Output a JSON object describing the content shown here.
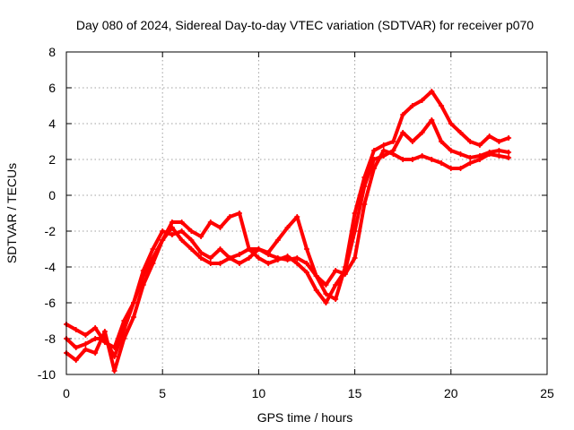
{
  "chart_data": {
    "type": "scatter",
    "title": "Day 080 of 2024, Sidereal Day-to-day VTEC variation (SDTVAR) for receiver p070",
    "xlabel": "GPS time / hours",
    "ylabel": "SDTVAR / TECUs",
    "xlim": [
      0,
      25
    ],
    "ylim": [
      -10,
      8
    ],
    "x_ticks": [
      0,
      5,
      10,
      15,
      20,
      25
    ],
    "y_ticks": [
      -10,
      -8,
      -6,
      -4,
      -2,
      0,
      2,
      4,
      6,
      8
    ],
    "grid": true,
    "legend": "none",
    "color": "#ff0000",
    "series": [
      {
        "x": [
          0,
          0.5,
          1.0,
          1.5,
          2.0,
          2.5,
          3.0,
          3.5,
          4.0,
          4.5,
          5.0,
          5.5,
          6.0,
          6.5,
          7.0,
          7.5,
          8.0,
          8.5,
          9.0,
          9.5,
          10.0,
          10.5,
          11.0,
          11.5,
          12.0,
          12.5,
          13.0,
          13.5,
          14.0,
          14.5,
          15.0,
          15.5,
          16.0,
          16.5,
          17.0,
          17.5,
          18.0,
          18.5,
          19.0,
          19.5,
          20.0,
          20.5,
          21.0,
          21.5,
          22.0,
          22.5,
          23.0
        ],
        "y": [
          -7.2,
          -7.5,
          -7.8,
          -7.4,
          -8.2,
          -8.5,
          -7.0,
          -6.0,
          -4.5,
          -3.5,
          -2.5,
          -1.5,
          -1.5,
          -2.0,
          -2.3,
          -1.5,
          -1.8,
          -1.2,
          -1.0,
          -3.0,
          -3.0,
          -3.2,
          -2.5,
          -1.8,
          -1.2,
          -3.0,
          -4.5,
          -5.5,
          -5.8,
          -4.0,
          -1.0,
          1.0,
          2.5,
          2.8,
          3.0,
          4.5,
          5.0,
          5.3,
          5.8,
          5.0,
          4.0,
          3.5,
          3.0,
          2.8,
          3.3,
          3.0,
          3.2
        ]
      },
      {
        "x": [
          0,
          0.5,
          1.0,
          1.5,
          2.0,
          2.5,
          3.0,
          3.5,
          4.0,
          4.5,
          5.0,
          5.5,
          6.0,
          6.5,
          7.0,
          7.5,
          8.0,
          8.5,
          9.0,
          9.5,
          10.0,
          10.5,
          11.0,
          11.5,
          12.0,
          12.5,
          13.0,
          13.5,
          14.0,
          14.5,
          15.0,
          15.5,
          16.0,
          16.5,
          17.0,
          17.5,
          18.0,
          18.5,
          19.0,
          19.5,
          20.0,
          20.5,
          21.0,
          21.5,
          22.0,
          22.5,
          23.0
        ],
        "y": [
          -8.8,
          -9.2,
          -8.6,
          -8.8,
          -7.6,
          -9.8,
          -8.0,
          -6.8,
          -5.0,
          -3.8,
          -2.5,
          -1.8,
          -2.5,
          -3.0,
          -3.5,
          -3.8,
          -3.8,
          -3.5,
          -3.8,
          -3.5,
          -3.0,
          -3.3,
          -3.5,
          -3.6,
          -3.5,
          -3.8,
          -4.5,
          -5.0,
          -4.2,
          -4.4,
          -3.5,
          -0.5,
          1.5,
          2.5,
          2.3,
          2.0,
          2.0,
          2.2,
          2.0,
          1.8,
          1.5,
          1.5,
          1.8,
          2.0,
          2.3,
          2.2,
          2.1
        ]
      },
      {
        "x": [
          0,
          0.5,
          1.0,
          1.5,
          2.0,
          2.5,
          3.0,
          3.5,
          4.0,
          4.5,
          5.0,
          5.5,
          6.0,
          6.5,
          7.0,
          7.5,
          8.0,
          8.5,
          9.0,
          9.5,
          10.0,
          10.5,
          11.0,
          11.5,
          12.0,
          12.5,
          13.0,
          13.5,
          14.0,
          14.5,
          15.0,
          15.5,
          16.0,
          16.5,
          17.0,
          17.5,
          18.0,
          18.5,
          19.0,
          19.5,
          20.0,
          20.5,
          21.0,
          21.5,
          22.0,
          22.5,
          23.0
        ],
        "y": [
          -8.0,
          -8.5,
          -8.3,
          -8.0,
          -8.0,
          -9.0,
          -7.5,
          -6.0,
          -4.2,
          -3.0,
          -2.0,
          -2.2,
          -2.0,
          -2.5,
          -3.2,
          -3.5,
          -3.0,
          -3.5,
          -3.3,
          -3.0,
          -3.5,
          -3.8,
          -3.6,
          -3.4,
          -3.8,
          -4.3,
          -5.3,
          -6.0,
          -5.0,
          -4.2,
          -2.0,
          0.5,
          2.0,
          2.2,
          2.5,
          3.5,
          3.0,
          3.5,
          4.2,
          3.0,
          2.5,
          2.3,
          2.1,
          2.2,
          2.4,
          2.5,
          2.4
        ]
      }
    ]
  }
}
